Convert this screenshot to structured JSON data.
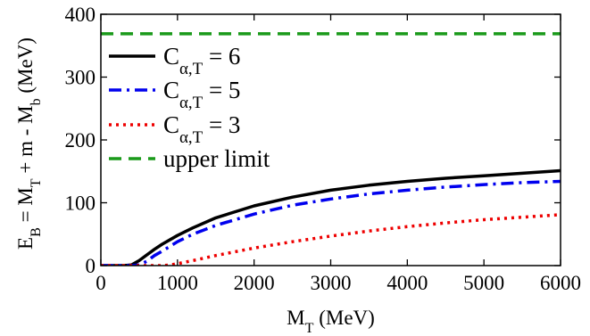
{
  "chart_data": {
    "type": "line",
    "xlabel": {
      "main": "M",
      "sub": "T",
      "rest": " (MeV)"
    },
    "ylabel": {
      "parts": [
        {
          "t": "E"
        },
        {
          "t": "B",
          "sub": true
        },
        {
          "t": " = M"
        },
        {
          "t": "T",
          "sub": true
        },
        {
          "t": " + m - M"
        },
        {
          "t": "b",
          "sub": true
        },
        {
          "t": " (MeV)"
        }
      ]
    },
    "xlim": [
      0,
      6000
    ],
    "ylim": [
      0,
      400
    ],
    "xticks": [
      0,
      1000,
      2000,
      3000,
      4000,
      5000,
      6000
    ],
    "yticks": [
      0,
      100,
      200,
      300,
      400
    ],
    "legend_position": "upper-left",
    "series": [
      {
        "name": "C_{α,T} = 6",
        "legend": {
          "main": "C",
          "sub": "α,T",
          "rest": " = 6"
        },
        "style": "solid",
        "color": "#000000",
        "x": [
          0,
          300,
          400,
          500,
          600,
          700,
          800,
          1000,
          1200,
          1500,
          2000,
          2500,
          3000,
          3500,
          4000,
          4500,
          5000,
          5500,
          6000
        ],
        "y": [
          0,
          0,
          1,
          8,
          17,
          26,
          34,
          48,
          60,
          76,
          95,
          109,
          120,
          128,
          134,
          139,
          143,
          147,
          151
        ]
      },
      {
        "name": "C_{α,T} = 5",
        "legend": {
          "main": "C",
          "sub": "α,T",
          "rest": " = 5"
        },
        "style": "dashdot",
        "color": "#0000ee",
        "x": [
          0,
          400,
          500,
          600,
          700,
          800,
          1000,
          1200,
          1500,
          2000,
          2500,
          3000,
          3500,
          4000,
          4500,
          5000,
          5500,
          6000
        ],
        "y": [
          0,
          0,
          1,
          7,
          16,
          23,
          38,
          50,
          64,
          82,
          96,
          106,
          114,
          120,
          125,
          129,
          132,
          134
        ]
      },
      {
        "name": "C_{α,T} = 3",
        "legend": {
          "main": "C",
          "sub": "α,T",
          "rest": " = 3"
        },
        "style": "dotted",
        "color": "#ee0000",
        "x": [
          0,
          800,
          900,
          1000,
          1200,
          1500,
          2000,
          2500,
          3000,
          3500,
          4000,
          4500,
          5000,
          5500,
          6000
        ],
        "y": [
          0,
          0,
          1,
          3,
          8,
          16,
          28,
          38,
          47,
          55,
          62,
          68,
          73,
          77,
          81
        ]
      },
      {
        "name": "upper limit",
        "legend": {
          "main": "upper limit",
          "sub": "",
          "rest": ""
        },
        "style": "dashed",
        "color": "#1a9a1a",
        "x": [
          0,
          6000
        ],
        "y": [
          369,
          369
        ]
      }
    ]
  }
}
